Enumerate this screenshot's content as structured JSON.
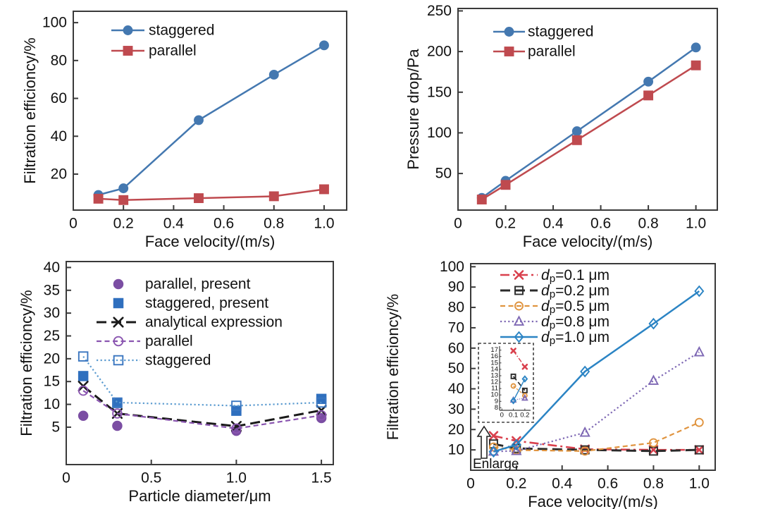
{
  "figure": {
    "description": "Four-panel scientific line-chart figure",
    "background": "#ffffff",
    "axis_color": "#3a3a3a",
    "text_color": "#111111"
  },
  "chart_data": [
    {
      "id": "filtration-efficiency-vs-face-velocity",
      "type": "line",
      "xlabel": "Face velocity/(m/s)",
      "ylabel": "Filtration efficioncy/%",
      "xlim": [
        0,
        1.09
      ],
      "ylim": [
        1,
        106
      ],
      "xticks": [
        0,
        0.2,
        0.4,
        0.6,
        0.8,
        1.0
      ],
      "xtick_labels": [
        "0",
        "0.2",
        "0.4",
        "0.6",
        "0.8",
        "1.0"
      ],
      "yticks": [
        20,
        40,
        60,
        80,
        100
      ],
      "grid": false,
      "legend_position": "upper-left",
      "x": [
        0.1,
        0.2,
        0.5,
        0.8,
        1.0
      ],
      "series": [
        {
          "name": "staggered",
          "color": "#4478b0",
          "marker": "circle",
          "filled": true,
          "line": "solid",
          "values": [
            9.0,
            12.5,
            48.5,
            72.5,
            88.0
          ]
        },
        {
          "name": "parallel",
          "color": "#bf4a4f",
          "marker": "square",
          "filled": true,
          "line": "solid",
          "values": [
            7.0,
            6.3,
            7.3,
            8.3,
            12.0
          ]
        }
      ]
    },
    {
      "id": "pressure-drop-vs-face-velocity",
      "type": "line",
      "xlabel": "Face velocity/(m/s)",
      "ylabel": "Pressure drop/Pa",
      "xlim": [
        0,
        1.09
      ],
      "ylim": [
        5,
        253
      ],
      "xticks": [
        0,
        0.2,
        0.4,
        0.6,
        0.8,
        1.0
      ],
      "xtick_labels": [
        "0",
        "0.2",
        "0.4",
        "0.6",
        "0.8",
        "1.0"
      ],
      "yticks": [
        50,
        100,
        150,
        200,
        250
      ],
      "grid": false,
      "legend_position": "upper-left",
      "x": [
        0.1,
        0.2,
        0.5,
        0.8,
        1.0
      ],
      "series": [
        {
          "name": "staggered",
          "color": "#4478b0",
          "marker": "circle",
          "filled": true,
          "line": "solid",
          "values": [
            20,
            41,
            102,
            163,
            205
          ]
        },
        {
          "name": "parallel",
          "color": "#bf4a4f",
          "marker": "square",
          "filled": true,
          "line": "solid",
          "values": [
            18,
            36,
            91,
            146,
            183
          ]
        }
      ]
    },
    {
      "id": "filtration-efficiency-vs-particle-diameter",
      "type": "line",
      "xlabel": "Particle diameter/μm",
      "ylabel": "Filtration efficioncy/%",
      "xlim": [
        0,
        1.57
      ],
      "ylim": [
        -3.2,
        41.3
      ],
      "xticks": [
        0,
        0.5,
        1.0,
        1.5
      ],
      "xtick_labels": [
        "0",
        "0.5",
        "1.0",
        "1.5"
      ],
      "yticks": [
        5,
        10,
        15,
        20,
        25,
        30,
        35,
        40
      ],
      "grid": false,
      "legend_position": "upper-center-left",
      "x": [
        0.1,
        0.3,
        1.0,
        1.5
      ],
      "series": [
        {
          "name": "parallel, present",
          "color": "#7b4ea3",
          "marker": "circle",
          "filled": true,
          "line": "none",
          "values": [
            7.5,
            5.3,
            4.2,
            7.0
          ]
        },
        {
          "name": "staggered, present",
          "color": "#2f6fbe",
          "marker": "square",
          "filled": true,
          "line": "none",
          "values": [
            16.2,
            10.3,
            8.6,
            11.2
          ]
        },
        {
          "name": "analytical expression",
          "color": "#1a1a1a",
          "marker": "x",
          "filled": false,
          "line": "longdash",
          "values": [
            14.0,
            8.0,
            5.2,
            8.7
          ]
        },
        {
          "name": "parallel",
          "color": "#8a55b0",
          "marker": "circle",
          "filled": false,
          "line": "dashed",
          "values": [
            13.0,
            8.0,
            4.7,
            7.6
          ]
        },
        {
          "name": "staggered",
          "color": "#5b9bd0",
          "marker_color": "#3a76c0",
          "marker": "square",
          "filled": false,
          "line": "dotted",
          "values": [
            20.5,
            10.4,
            9.7,
            10.4
          ]
        }
      ]
    },
    {
      "id": "filtration-efficiency-vs-face-velocity-by-particle-size",
      "type": "line",
      "xlabel": "Face velocity/(m/s)",
      "ylabel": "Filtration efficioncy/%",
      "xlim": [
        0,
        1.07
      ],
      "ylim": [
        0,
        101.5
      ],
      "xticks": [
        0,
        0.2,
        0.4,
        0.6,
        0.8,
        1.0
      ],
      "xtick_labels": [
        "0",
        "0.2",
        "0.4",
        "0.6",
        "0.8",
        "1.0"
      ],
      "yticks": [
        10,
        20,
        30,
        40,
        50,
        60,
        70,
        80,
        90,
        100
      ],
      "grid": false,
      "legend_position": "upper-left",
      "x": [
        0.1,
        0.2,
        0.5,
        0.8,
        1.0
      ],
      "series": [
        {
          "name": "dp=0.1 μm",
          "label_parts": {
            "it": "d",
            "sub": "p",
            "rest": "=0.1 μm"
          },
          "color": "#d9404d",
          "marker": "x",
          "filled": false,
          "line": "dashdot",
          "values": [
            16.9,
            14.4,
            10.3,
            10.0,
            10.0
          ]
        },
        {
          "name": "dp=0.2 μm",
          "label_parts": {
            "it": "d",
            "sub": "p",
            "rest": "=0.2 μm"
          },
          "color": "#2b2b2b",
          "marker": "square",
          "filled": false,
          "line": "longdash",
          "values": [
            12.9,
            10.7,
            10.0,
            9.4,
            10.0
          ]
        },
        {
          "name": "dp=0.5 μm",
          "label_parts": {
            "it": "d",
            "sub": "p",
            "rest": "=0.5 μm"
          },
          "color": "#e0943f",
          "marker": "circle",
          "filled": false,
          "line": "dashed",
          "values": [
            11.4,
            9.9,
            9.4,
            13.5,
            23.5
          ]
        },
        {
          "name": "dp=0.8 μm",
          "label_parts": {
            "it": "d",
            "sub": "p",
            "rest": "=0.8 μm"
          },
          "color": "#7e68b4",
          "marker": "triangle",
          "filled": false,
          "line": "dotted",
          "values": [
            9.2,
            9.5,
            18.5,
            44.0,
            58.0
          ]
        },
        {
          "name": "dp=1.0 μm",
          "label_parts": {
            "it": "d",
            "sub": "p",
            "rest": "=1.0 μm"
          },
          "color": "#2b84c4",
          "marker": "diamond",
          "filled": false,
          "line": "solid",
          "values": [
            9.1,
            12.5,
            48.5,
            72.0,
            88.0
          ]
        }
      ],
      "inset": {
        "description": "enlarged low-velocity region",
        "xlim": [
          -0.02,
          0.25
        ],
        "ylim": [
          7.6,
          17.4
        ],
        "xticks": [
          0,
          0.1,
          0.2
        ],
        "xtick_labels": [
          "0",
          "0.1",
          "0.2"
        ],
        "yticks": [
          8,
          9,
          10,
          11,
          12,
          13,
          14,
          15,
          16,
          17
        ],
        "x": [
          0.1,
          0.2
        ]
      },
      "annotation": {
        "text": "Enlarge",
        "symbol": "up-arrow"
      }
    }
  ]
}
